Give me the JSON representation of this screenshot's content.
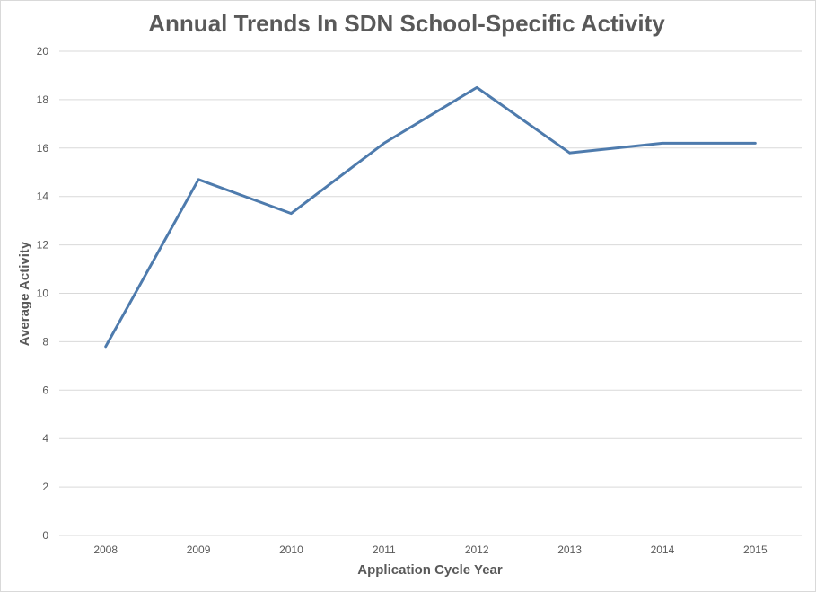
{
  "chart_data": {
    "type": "line",
    "title": "Annual Trends In SDN School-Specific Activity",
    "xlabel": "Application Cycle Year",
    "ylabel": "Average Activity",
    "categories": [
      "2008",
      "2009",
      "2010",
      "2011",
      "2012",
      "2013",
      "2014",
      "2015"
    ],
    "series": [
      {
        "values": [
          7.8,
          14.7,
          13.3,
          16.2,
          18.5,
          15.8,
          16.2,
          16.2
        ],
        "color": "#4e7bad"
      }
    ],
    "ylim": [
      0,
      20
    ],
    "yticks": [
      "0",
      "2",
      "4",
      "6",
      "8",
      "10",
      "12",
      "14",
      "16",
      "18",
      "20"
    ],
    "grid": "horizontal",
    "legend": "none"
  }
}
